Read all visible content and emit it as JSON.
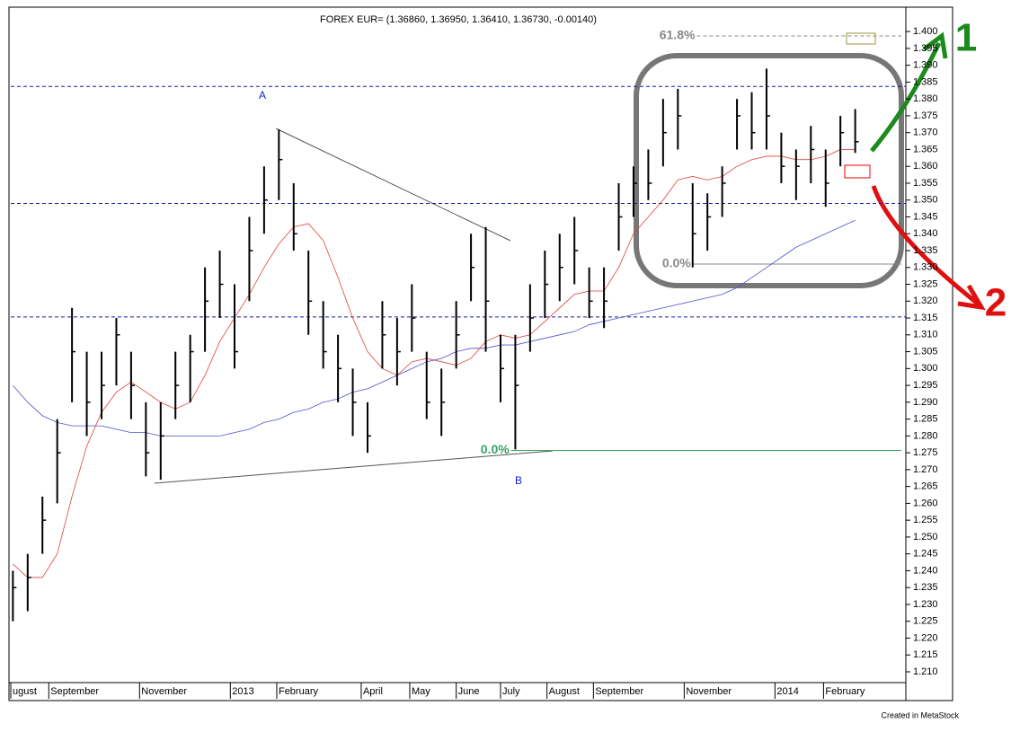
{
  "chart_data": {
    "type": "ohlc",
    "title": "FOREX EUR= (1.36860, 1.36950, 1.36410, 1.36730, -0.00140)",
    "footer": "Created in MetaStock",
    "annotations": {
      "a": "A",
      "b": "B",
      "one": "1",
      "two": "2"
    },
    "x": [
      0,
      7,
      14,
      21,
      28,
      35,
      42,
      49,
      56,
      63,
      70,
      77,
      84,
      91,
      98,
      105,
      112,
      119,
      126,
      133,
      140,
      147,
      154,
      161,
      168,
      175,
      182,
      189,
      196,
      203,
      210,
      217,
      224,
      231,
      238,
      245,
      252,
      259,
      266,
      273,
      280,
      287,
      294,
      301,
      308,
      315,
      322,
      329,
      336,
      343,
      350,
      357,
      364,
      371,
      378,
      385,
      392,
      399
    ],
    "high": [
      1.24,
      1.245,
      1.262,
      1.285,
      1.318,
      1.305,
      1.305,
      1.315,
      1.305,
      1.29,
      1.29,
      1.305,
      1.31,
      1.33,
      1.335,
      1.325,
      1.345,
      1.36,
      1.371,
      1.355,
      1.335,
      1.32,
      1.31,
      1.3,
      1.29,
      1.32,
      1.315,
      1.325,
      1.305,
      1.3,
      1.32,
      1.34,
      1.342,
      1.31,
      1.31,
      1.325,
      1.335,
      1.34,
      1.345,
      1.33,
      1.33,
      1.355,
      1.36,
      1.365,
      1.38,
      1.383,
      1.355,
      1.352,
      1.36,
      1.38,
      1.382,
      1.389,
      1.37,
      1.365,
      1.372,
      1.365,
      1.375,
      1.377
    ],
    "low": [
      1.225,
      1.228,
      1.245,
      1.26,
      1.29,
      1.28,
      1.285,
      1.295,
      1.285,
      1.268,
      1.267,
      1.285,
      1.29,
      1.305,
      1.315,
      1.3,
      1.32,
      1.34,
      1.35,
      1.335,
      1.31,
      1.3,
      1.29,
      1.28,
      1.275,
      1.3,
      1.295,
      1.305,
      1.285,
      1.28,
      1.3,
      1.32,
      1.305,
      1.29,
      1.276,
      1.305,
      1.315,
      1.32,
      1.325,
      1.315,
      1.312,
      1.335,
      1.345,
      1.35,
      1.36,
      1.365,
      1.33,
      1.335,
      1.345,
      1.365,
      1.365,
      1.365,
      1.355,
      1.35,
      1.355,
      1.348,
      1.36,
      1.364
    ],
    "close": [
      1.235,
      1.238,
      1.255,
      1.275,
      1.305,
      1.29,
      1.295,
      1.31,
      1.295,
      1.275,
      1.28,
      1.295,
      1.305,
      1.32,
      1.325,
      1.305,
      1.335,
      1.35,
      1.362,
      1.34,
      1.32,
      1.305,
      1.3,
      1.29,
      1.28,
      1.31,
      1.305,
      1.315,
      1.29,
      1.29,
      1.31,
      1.33,
      1.32,
      1.3,
      1.295,
      1.315,
      1.325,
      1.33,
      1.335,
      1.32,
      1.32,
      1.345,
      1.355,
      1.355,
      1.37,
      1.375,
      1.34,
      1.345,
      1.355,
      1.375,
      1.37,
      1.375,
      1.36,
      1.36,
      1.365,
      1.355,
      1.37,
      1.3673
    ],
    "bar_color": "#000000",
    "moving_averages": [
      {
        "color": "#e0433a",
        "values": [
          1.242,
          1.238,
          1.238,
          1.245,
          1.262,
          1.277,
          1.287,
          1.293,
          1.296,
          1.293,
          1.29,
          1.288,
          1.29,
          1.298,
          1.308,
          1.315,
          1.322,
          1.33,
          1.337,
          1.342,
          1.343,
          1.338,
          1.327,
          1.315,
          1.305,
          1.3,
          1.298,
          1.302,
          1.303,
          1.302,
          1.301,
          1.303,
          1.308,
          1.31,
          1.309,
          1.31,
          1.314,
          1.318,
          1.322,
          1.323,
          1.323,
          1.33,
          1.34,
          1.345,
          1.35,
          1.356,
          1.357,
          1.356,
          1.357,
          1.36,
          1.362,
          1.363,
          1.363,
          1.362,
          1.362,
          1.363,
          1.365,
          1.365
        ]
      },
      {
        "color": "#5050d0",
        "values": [
          1.295,
          1.29,
          1.286,
          1.284,
          1.283,
          1.283,
          1.283,
          1.282,
          1.281,
          1.281,
          1.28,
          1.28,
          1.28,
          1.28,
          1.28,
          1.281,
          1.282,
          1.284,
          1.285,
          1.287,
          1.288,
          1.29,
          1.291,
          1.293,
          1.294,
          1.296,
          1.298,
          1.3,
          1.302,
          1.303,
          1.305,
          1.306,
          1.306,
          1.307,
          1.307,
          1.308,
          1.309,
          1.31,
          1.311,
          1.313,
          1.314,
          1.315,
          1.316,
          1.317,
          1.318,
          1.319,
          1.32,
          1.321,
          1.322,
          1.324,
          1.327,
          1.33,
          1.333,
          1.336,
          1.338,
          1.34,
          1.342,
          1.344
        ]
      }
    ],
    "levels": [
      {
        "value": 1.3837,
        "color": "#1a1aa0",
        "dash": true,
        "from": -1
      },
      {
        "value": 1.349,
        "color": "#1a1aa0",
        "dash": true,
        "from": -1
      },
      {
        "value": 1.3153,
        "color": "#1a1aa0",
        "dash": true,
        "from": -1
      },
      {
        "value": 1.3987,
        "color": "#888888",
        "dash": true,
        "from": 324,
        "label": "61.8%"
      },
      {
        "value": 1.331,
        "color": "#888888",
        "dash": false,
        "from": 322,
        "label": "0.0%"
      },
      {
        "value": 1.2757,
        "color": "#3aa36a",
        "dash": false,
        "from": 236,
        "label": "0.0%"
      }
    ],
    "xlim": [
      -1,
      423
    ],
    "xticks": [
      {
        "value": -1,
        "label": "ugust"
      },
      {
        "value": 17,
        "label": "September"
      },
      {
        "value": 60,
        "label": "November"
      },
      {
        "value": 103,
        "label": "2013"
      },
      {
        "value": 125,
        "label": "February"
      },
      {
        "value": 165,
        "label": "April"
      },
      {
        "value": 188,
        "label": "May"
      },
      {
        "value": 210,
        "label": "June"
      },
      {
        "value": 231,
        "label": "July"
      },
      {
        "value": 253,
        "label": "August"
      },
      {
        "value": 275,
        "label": "September"
      },
      {
        "value": 318,
        "label": "November"
      },
      {
        "value": 361,
        "label": "2014"
      },
      {
        "value": 384,
        "label": "February"
      }
    ],
    "ylim": [
      1.2068,
      1.4067
    ],
    "yticks": [
      {
        "value": 1.21,
        "label": "1.210"
      },
      {
        "value": 1.215,
        "label": "1.215"
      },
      {
        "value": 1.22,
        "label": "1.220"
      },
      {
        "value": 1.225,
        "label": "1.225"
      },
      {
        "value": 1.23,
        "label": "1.230"
      },
      {
        "value": 1.235,
        "label": "1.235"
      },
      {
        "value": 1.24,
        "label": "1.240"
      },
      {
        "value": 1.245,
        "label": "1.245"
      },
      {
        "value": 1.25,
        "label": "1.250"
      },
      {
        "value": 1.255,
        "label": "1.255"
      },
      {
        "value": 1.26,
        "label": "1.260"
      },
      {
        "value": 1.265,
        "label": "1.265"
      },
      {
        "value": 1.27,
        "label": "1.270"
      },
      {
        "value": 1.275,
        "label": "1.275"
      },
      {
        "value": 1.28,
        "label": "1.280"
      },
      {
        "value": 1.285,
        "label": "1.285"
      },
      {
        "value": 1.29,
        "label": "1.290"
      },
      {
        "value": 1.295,
        "label": "1.295"
      },
      {
        "value": 1.3,
        "label": "1.300"
      },
      {
        "value": 1.305,
        "label": "1.305"
      },
      {
        "value": 1.31,
        "label": "1.310"
      },
      {
        "value": 1.315,
        "label": "1.315"
      },
      {
        "value": 1.32,
        "label": "1.320"
      },
      {
        "value": 1.325,
        "label": "1.325"
      },
      {
        "value": 1.33,
        "label": "1.330"
      },
      {
        "value": 1.335,
        "label": "1.335"
      },
      {
        "value": 1.34,
        "label": "1.340"
      },
      {
        "value": 1.345,
        "label": "1.345"
      },
      {
        "value": 1.35,
        "label": "1.350"
      },
      {
        "value": 1.355,
        "label": "1.355"
      },
      {
        "value": 1.36,
        "label": "1.360"
      },
      {
        "value": 1.365,
        "label": "1.365"
      },
      {
        "value": 1.37,
        "label": "1.370"
      },
      {
        "value": 1.375,
        "label": "1.375"
      },
      {
        "value": 1.38,
        "label": "1.380"
      },
      {
        "value": 1.385,
        "label": "1.385"
      },
      {
        "value": 1.39,
        "label": "1.390"
      },
      {
        "value": 1.395,
        "label": "1.395"
      },
      {
        "value": 1.4,
        "label": "1.400"
      }
    ]
  }
}
